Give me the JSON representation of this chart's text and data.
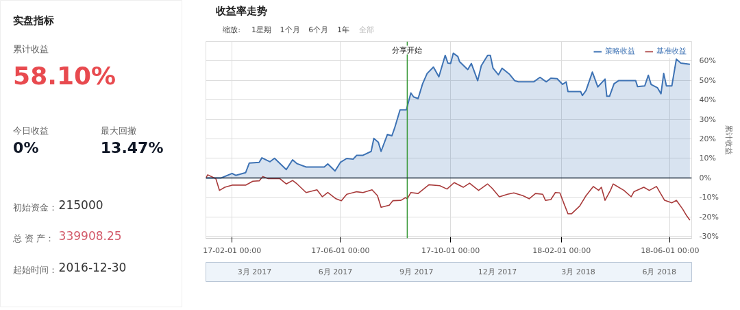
{
  "chart_data": [
    {
      "type": "other",
      "title": "实盘指标",
      "annotations": [
        "累计收益",
        "58.10%",
        "今日收益",
        "0%",
        "最大回撤",
        "13.47%",
        "初始资金：",
        "215000",
        "总 资 产：",
        "339908.25",
        "起始时间：",
        "2016-12-30"
      ]
    },
    {
      "type": "line",
      "title": "收益率走势",
      "ylabel": "累计收益",
      "annotations": [
        "缩放:",
        "1星期",
        "1个月",
        "6个月",
        "1年",
        "全部",
        "3月 2017",
        "6月 2017",
        "9月 2017",
        "12月 2017",
        "3月 2018",
        "6月 2018"
      ],
      "xlim": [
        "2017-01-03",
        "2018-06-25"
      ],
      "xticks": [
        {
          "value": "2017-02-01",
          "label": "17-02-01 00:00"
        },
        {
          "value": "2017-06-01",
          "label": "17-06-01 00:00"
        },
        {
          "value": "2017-10-01",
          "label": "17-10-01 00:00"
        },
        {
          "value": "2018-02-01",
          "label": "18-02-01 00:00"
        },
        {
          "value": "2018-06-01",
          "label": "18-06-01 00:00"
        }
      ],
      "ylim": [
        -31,
        70
      ],
      "yticks": [
        {
          "value": -30,
          "label": "-30%"
        },
        {
          "value": -20,
          "label": "-20%"
        },
        {
          "value": -10,
          "label": "-10%"
        },
        {
          "value": 0,
          "label": "0%"
        },
        {
          "value": 10,
          "label": "10%"
        },
        {
          "value": 20,
          "label": "20%"
        },
        {
          "value": 30,
          "label": "30%"
        },
        {
          "value": 40,
          "label": "40%"
        },
        {
          "value": 50,
          "label": "50%"
        },
        {
          "value": 60,
          "label": "60%"
        }
      ],
      "grid": true,
      "legend": "top right",
      "ref_lines": [
        {
          "axis": "x",
          "value": "2017-08-14",
          "label": "分享开始",
          "color": "#3a9a3a"
        },
        {
          "axis": "y",
          "value": 0,
          "color": "#1f2d3d"
        }
      ],
      "series": [
        {
          "name": "策略收益",
          "type": "area",
          "color": "#3d72b4",
          "x": [
            "2017-01-03",
            "2017-01-20",
            "2017-02-01",
            "2017-02-05",
            "2017-02-16",
            "2017-02-20",
            "2017-03-03",
            "2017-03-06",
            "2017-03-15",
            "2017-03-20",
            "2017-04-02",
            "2017-04-09",
            "2017-04-14",
            "2017-04-24",
            "2017-05-14",
            "2017-05-18",
            "2017-05-26",
            "2017-06-01",
            "2017-06-08",
            "2017-06-15",
            "2017-06-19",
            "2017-06-26",
            "2017-07-05",
            "2017-07-08",
            "2017-07-13",
            "2017-07-16",
            "2017-07-23",
            "2017-07-28",
            "2017-07-31",
            "2017-08-06",
            "2017-08-13",
            "2017-08-18",
            "2017-08-21",
            "2017-08-26",
            "2017-08-31",
            "2017-09-05",
            "2017-09-12",
            "2017-09-18",
            "2017-09-25",
            "2017-09-28",
            "2017-10-01",
            "2017-10-04",
            "2017-10-09",
            "2017-10-11",
            "2017-10-20",
            "2017-10-24",
            "2017-10-31",
            "2017-11-04",
            "2017-11-11",
            "2017-11-14",
            "2017-11-17",
            "2017-11-23",
            "2017-11-27",
            "2017-12-05",
            "2017-12-11",
            "2017-12-15",
            "2018-01-01",
            "2018-01-08",
            "2018-01-15",
            "2018-01-20",
            "2018-01-27",
            "2018-02-02",
            "2018-02-06",
            "2018-02-08",
            "2018-02-22",
            "2018-02-24",
            "2018-02-28",
            "2018-03-07",
            "2018-03-13",
            "2018-03-21",
            "2018-03-23",
            "2018-03-26",
            "2018-03-31",
            "2018-04-05",
            "2018-04-24",
            "2018-04-26",
            "2018-05-04",
            "2018-05-08",
            "2018-05-11",
            "2018-05-18",
            "2018-05-22",
            "2018-05-25",
            "2018-05-28",
            "2018-06-03",
            "2018-06-08",
            "2018-06-13",
            "2018-06-23"
          ],
          "values": [
            0,
            0,
            2.3,
            1.3,
            2.7,
            7.6,
            8,
            10.3,
            8.3,
            10.1,
            4.3,
            9.3,
            7.3,
            5.6,
            5.6,
            7.2,
            3.6,
            8,
            10,
            9.6,
            11.6,
            11.6,
            13.6,
            20.3,
            18.3,
            13.6,
            22.3,
            21.6,
            25.6,
            34.9,
            34.9,
            43.6,
            41.6,
            40.7,
            48.3,
            53.6,
            56.9,
            51.9,
            62.9,
            58.9,
            58.7,
            64,
            62.3,
            59.6,
            55.6,
            58.7,
            49.9,
            57.6,
            62.9,
            62.9,
            56.3,
            52.9,
            56.3,
            53.3,
            49.9,
            49.3,
            49.3,
            51.6,
            49.3,
            51.2,
            50.9,
            48,
            49.3,
            44.3,
            44.3,
            42.3,
            44.9,
            54.3,
            46.7,
            50.7,
            41.9,
            41.9,
            48.3,
            49.9,
            49.9,
            46.9,
            47.2,
            52.7,
            48,
            46.3,
            43.2,
            53.6,
            47.2,
            47.2,
            60.9,
            58.9,
            58.3
          ]
        },
        {
          "name": "基准收益",
          "type": "line",
          "color": "#a83a3a",
          "x": [
            "2017-01-03",
            "2017-01-05",
            "2017-01-14",
            "2017-01-18",
            "2017-01-24",
            "2017-02-01",
            "2017-02-16",
            "2017-02-24",
            "2017-03-03",
            "2017-03-07",
            "2017-03-13",
            "2017-03-26",
            "2017-04-02",
            "2017-04-09",
            "2017-04-14",
            "2017-04-24",
            "2017-05-06",
            "2017-05-12",
            "2017-05-18",
            "2017-05-27",
            "2017-06-02",
            "2017-06-08",
            "2017-06-19",
            "2017-06-26",
            "2017-07-06",
            "2017-07-12",
            "2017-07-16",
            "2017-07-25",
            "2017-07-29",
            "2017-08-07",
            "2017-08-12",
            "2017-08-14",
            "2017-08-18",
            "2017-08-26",
            "2017-09-07",
            "2017-09-19",
            "2017-09-27",
            "2017-10-05",
            "2017-10-15",
            "2017-10-22",
            "2017-11-01",
            "2017-11-11",
            "2017-11-16",
            "2017-11-24",
            "2017-12-03",
            "2017-12-10",
            "2017-12-20",
            "2017-12-27",
            "2018-01-03",
            "2018-01-11",
            "2018-01-14",
            "2018-01-20",
            "2018-01-25",
            "2018-01-30",
            "2018-02-04",
            "2018-02-08",
            "2018-02-12",
            "2018-02-21",
            "2018-02-28",
            "2018-03-08",
            "2018-03-14",
            "2018-03-17",
            "2018-03-21",
            "2018-03-27",
            "2018-03-30",
            "2018-04-11",
            "2018-04-19",
            "2018-04-22",
            "2018-05-03",
            "2018-05-09",
            "2018-05-17",
            "2018-05-26",
            "2018-06-03",
            "2018-06-08",
            "2018-06-15",
            "2018-06-19",
            "2018-06-23"
          ],
          "values": [
            0,
            1.6,
            -0.4,
            -6.4,
            -4.8,
            -3.7,
            -3.7,
            -1.7,
            -1.5,
            0.7,
            -0.4,
            -0.4,
            -3.1,
            -1.3,
            -3.1,
            -7.5,
            -6.1,
            -9.7,
            -7.5,
            -10.7,
            -11.7,
            -8.4,
            -7.1,
            -7.5,
            -6.1,
            -9.1,
            -15.1,
            -14,
            -11.7,
            -11.5,
            -10.1,
            -10.7,
            -7.5,
            -8,
            -3.5,
            -4,
            -5.7,
            -2.4,
            -4.8,
            -2.7,
            -6.4,
            -3.1,
            -5.3,
            -9.7,
            -8.4,
            -7.7,
            -9.1,
            -10.7,
            -8,
            -8.4,
            -11.5,
            -11.1,
            -7.5,
            -7.7,
            -13.7,
            -18.4,
            -18.4,
            -14.4,
            -9.1,
            -4.4,
            -6.4,
            -4.8,
            -11.5,
            -6.4,
            -3.1,
            -6.4,
            -9.7,
            -7.1,
            -4.8,
            -6.4,
            -4.4,
            -11.5,
            -12.8,
            -11.5,
            -16,
            -19.1,
            -21.7
          ]
        }
      ]
    }
  ]
}
